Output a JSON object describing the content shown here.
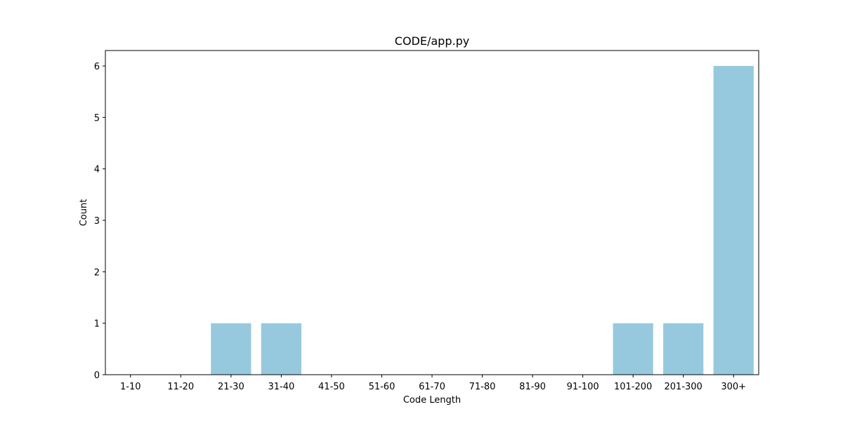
{
  "chart_data": {
    "type": "bar",
    "title": "CODE/app.py",
    "xlabel": "Code Length",
    "ylabel": "Count",
    "categories": [
      "1-10",
      "11-20",
      "21-30",
      "31-40",
      "41-50",
      "51-60",
      "61-70",
      "71-80",
      "81-90",
      "91-100",
      "101-200",
      "201-300",
      "300+"
    ],
    "values": [
      0,
      0,
      1,
      1,
      0,
      0,
      0,
      0,
      0,
      0,
      1,
      1,
      6
    ],
    "ylim": [
      0,
      6.3
    ],
    "yticks": [
      0,
      1,
      2,
      3,
      4,
      5,
      6
    ],
    "grid": false,
    "bar_color": "#96c9de"
  }
}
